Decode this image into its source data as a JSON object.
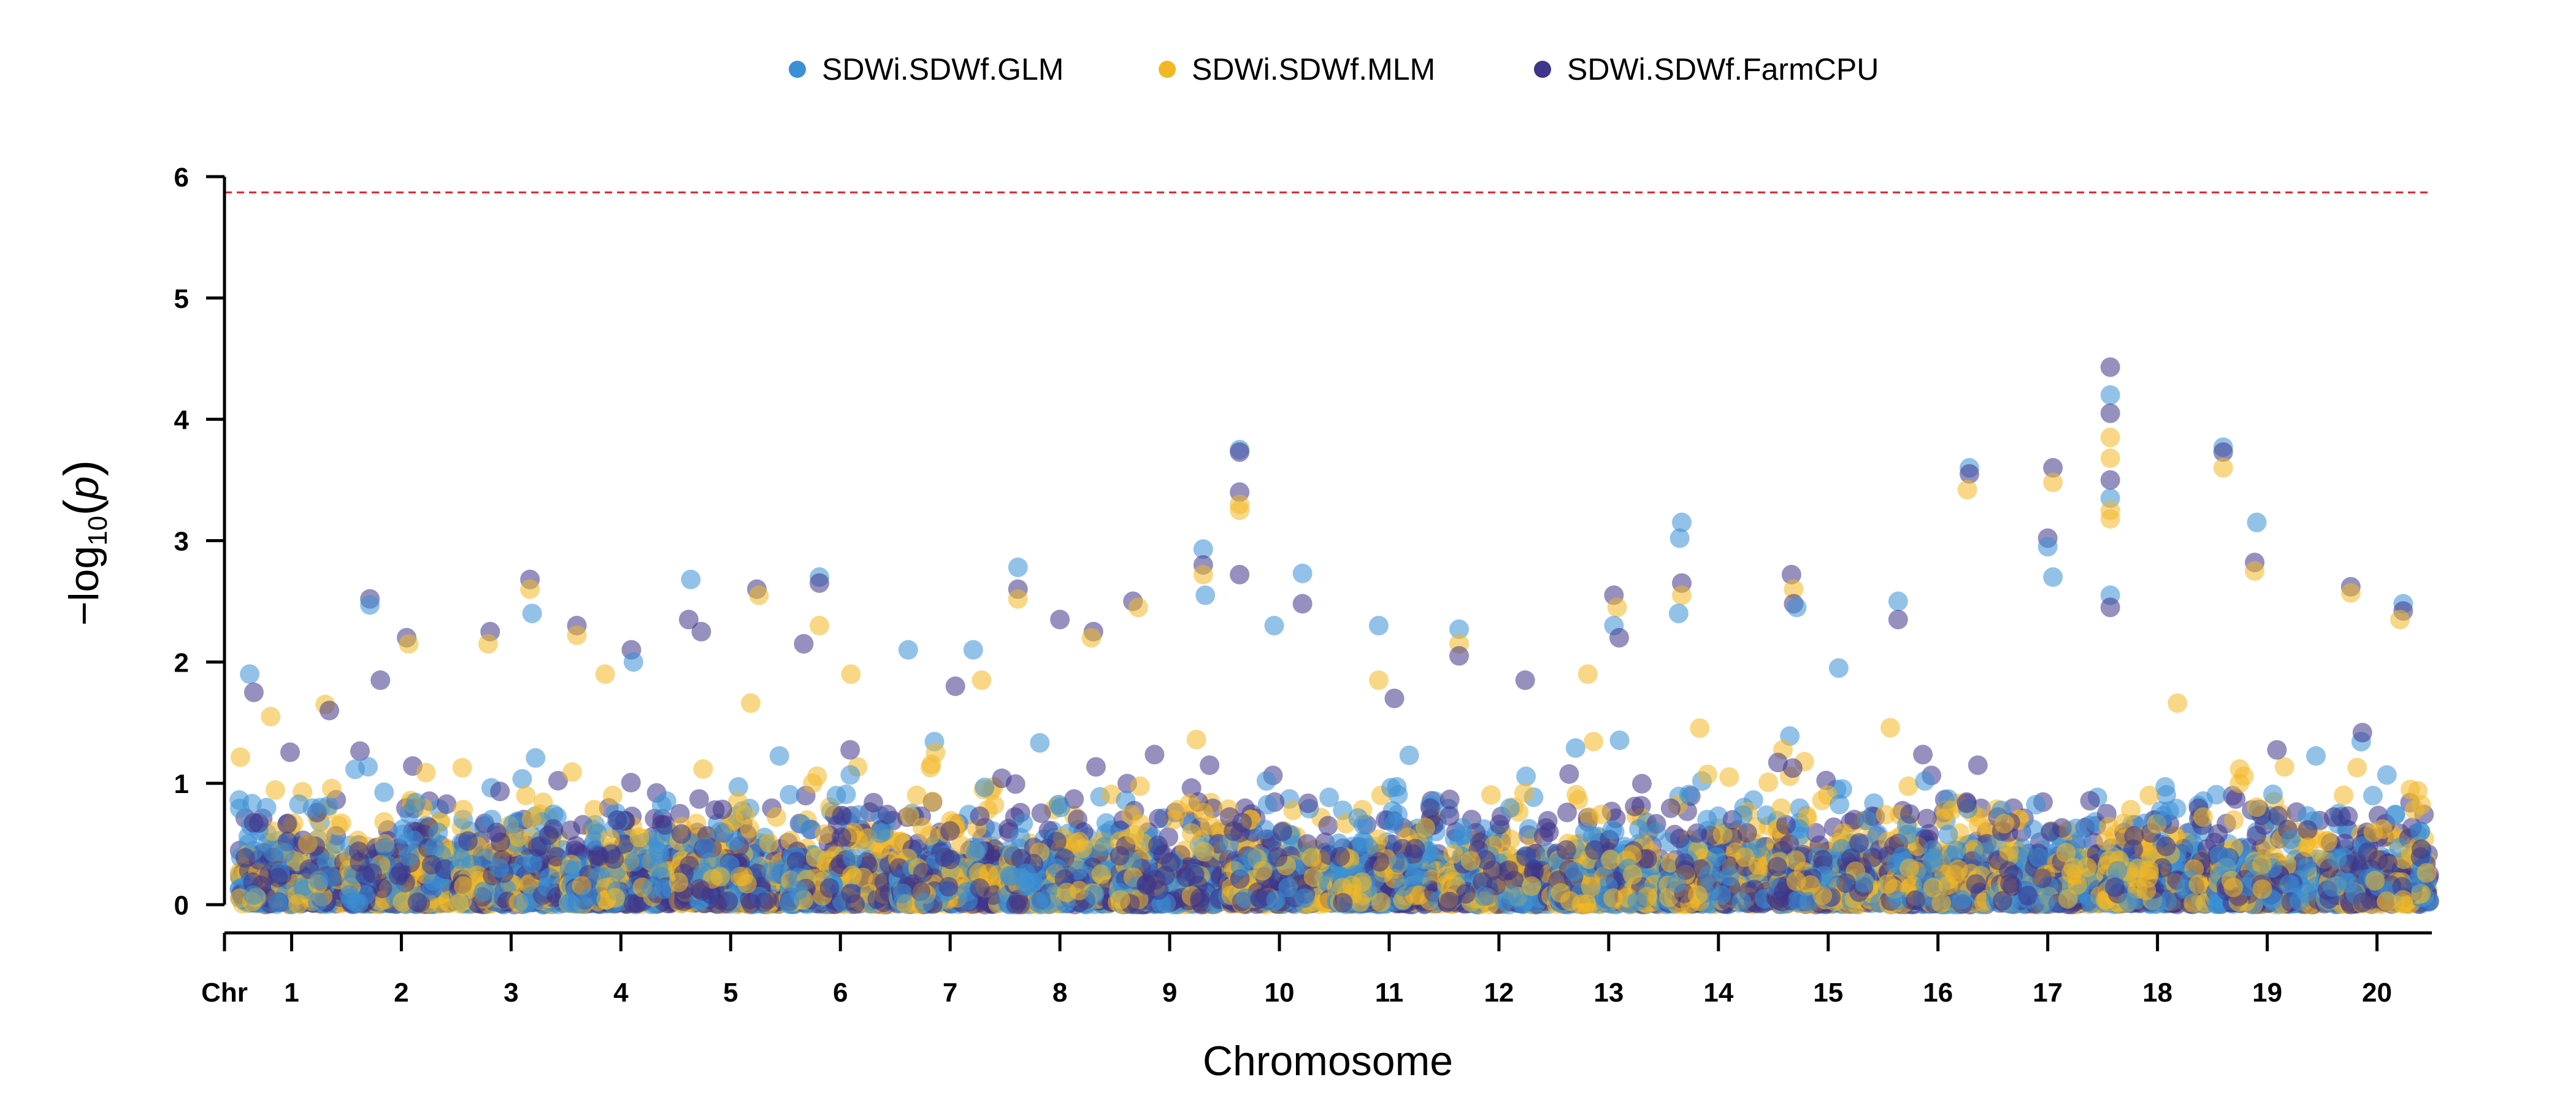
{
  "chart_data": {
    "type": "scatter",
    "subtype": "manhattan",
    "xlabel": "Chromosome",
    "ylabel": "−log10(p)",
    "ylabel_main": "−log",
    "ylabel_sub": "10",
    "ylabel_paren_open": "(",
    "ylabel_var": "p",
    "ylabel_paren_close": ")",
    "x_prefix_label": "Chr",
    "ylim": [
      0,
      6
    ],
    "yticks": [
      "0",
      "1",
      "2",
      "3",
      "4",
      "5",
      "6"
    ],
    "threshold": {
      "value": 5.87,
      "color": "#e0242a",
      "style": "dashed"
    },
    "legend_position": "top-center",
    "series": [
      {
        "name": "SDWi.SDWf.GLM",
        "color": "#3b8fd6"
      },
      {
        "name": "SDWi.SDWf.MLM",
        "color": "#f2b824"
      },
      {
        "name": "SDWi.SDWf.FarmCPU",
        "color": "#3f3589"
      }
    ],
    "chromosomes": [
      {
        "label": "1",
        "peak": 1.9,
        "dense": 1.3,
        "top": [
          [
            0.1,
            1.9,
            0
          ],
          [
            0.14,
            1.75,
            2
          ],
          [
            0.3,
            1.55,
            1
          ],
          [
            0.82,
            1.65,
            1
          ],
          [
            0.86,
            1.6,
            2
          ]
        ]
      },
      {
        "label": "2",
        "peak": 2.5,
        "dense": 1.3,
        "top": [
          [
            0.2,
            2.52,
            2
          ],
          [
            0.2,
            2.47,
            0
          ],
          [
            0.55,
            2.2,
            2
          ],
          [
            0.57,
            2.15,
            1
          ],
          [
            0.3,
            1.85,
            2
          ]
        ]
      },
      {
        "label": "3",
        "peak": 2.68,
        "dense": 1.45,
        "top": [
          [
            0.68,
            2.68,
            2
          ],
          [
            0.68,
            2.6,
            1
          ],
          [
            0.3,
            2.25,
            2
          ],
          [
            0.28,
            2.15,
            1
          ],
          [
            0.7,
            2.4,
            0
          ]
        ]
      },
      {
        "label": "4",
        "peak": 2.3,
        "dense": 1.5,
        "top": [
          [
            0.08,
            2.3,
            2
          ],
          [
            0.08,
            2.22,
            1
          ],
          [
            0.6,
            2.1,
            2
          ],
          [
            0.62,
            2.0,
            0
          ],
          [
            0.35,
            1.9,
            1
          ]
        ]
      },
      {
        "label": "5",
        "peak": 2.68,
        "dense": 2.0,
        "top": [
          [
            0.12,
            2.68,
            0
          ],
          [
            0.1,
            2.35,
            2
          ],
          [
            0.22,
            2.25,
            2
          ],
          [
            0.75,
            2.6,
            2
          ],
          [
            0.77,
            2.55,
            1
          ]
        ]
      },
      {
        "label": "6",
        "peak": 2.7,
        "dense": 1.5,
        "top": [
          [
            0.3,
            2.7,
            0
          ],
          [
            0.3,
            2.65,
            2
          ],
          [
            0.3,
            2.3,
            1
          ],
          [
            0.15,
            2.15,
            2
          ],
          [
            0.6,
            1.9,
            1
          ]
        ]
      },
      {
        "label": "7",
        "peak": 2.1,
        "dense": 1.4,
        "top": [
          [
            0.1,
            2.1,
            0
          ],
          [
            0.72,
            2.1,
            0
          ],
          [
            0.8,
            1.85,
            1
          ],
          [
            0.55,
            1.8,
            2
          ]
        ]
      },
      {
        "label": "8",
        "peak": 2.78,
        "dense": 1.4,
        "top": [
          [
            0.1,
            2.78,
            0
          ],
          [
            0.1,
            2.6,
            2
          ],
          [
            0.1,
            2.52,
            1
          ],
          [
            0.5,
            2.35,
            2
          ],
          [
            0.82,
            2.25,
            2
          ],
          [
            0.8,
            2.2,
            1
          ]
        ]
      },
      {
        "label": "9",
        "peak": 2.93,
        "dense": 1.5,
        "top": [
          [
            0.15,
            2.5,
            2
          ],
          [
            0.2,
            2.45,
            1
          ],
          [
            0.82,
            2.93,
            0
          ],
          [
            0.82,
            2.8,
            2
          ],
          [
            0.82,
            2.72,
            1
          ],
          [
            0.84,
            2.55,
            0
          ]
        ]
      },
      {
        "label": "10",
        "peak": 3.75,
        "dense": 1.5,
        "top": [
          [
            0.12,
            3.75,
            0
          ],
          [
            0.12,
            3.73,
            2
          ],
          [
            0.12,
            3.4,
            2
          ],
          [
            0.12,
            3.3,
            1
          ],
          [
            0.12,
            3.25,
            1
          ],
          [
            0.12,
            2.72,
            2
          ],
          [
            0.72,
            2.73,
            0
          ],
          [
            0.72,
            2.48,
            2
          ],
          [
            0.45,
            2.3,
            0
          ]
        ]
      },
      {
        "label": "11",
        "peak": 2.3,
        "dense": 1.5,
        "top": [
          [
            0.4,
            2.3,
            0
          ],
          [
            0.4,
            1.85,
            1
          ],
          [
            0.55,
            1.7,
            2
          ]
        ]
      },
      {
        "label": "12",
        "peak": 2.27,
        "dense": 1.5,
        "top": [
          [
            0.12,
            2.27,
            0
          ],
          [
            0.12,
            2.15,
            1
          ],
          [
            0.12,
            2.05,
            2
          ],
          [
            0.75,
            1.85,
            2
          ]
        ]
      },
      {
        "label": "13",
        "peak": 2.55,
        "dense": 1.8,
        "top": [
          [
            0.55,
            2.55,
            2
          ],
          [
            0.58,
            2.45,
            1
          ],
          [
            0.55,
            2.3,
            0
          ],
          [
            0.6,
            2.2,
            2
          ],
          [
            0.3,
            1.9,
            1
          ]
        ]
      },
      {
        "label": "14",
        "peak": 3.15,
        "dense": 1.5,
        "top": [
          [
            0.15,
            3.15,
            0
          ],
          [
            0.13,
            3.02,
            0
          ],
          [
            0.15,
            2.65,
            2
          ],
          [
            0.15,
            2.55,
            1
          ],
          [
            0.12,
            2.4,
            0
          ]
        ]
      },
      {
        "label": "15",
        "peak": 2.72,
        "dense": 1.6,
        "top": [
          [
            0.15,
            2.72,
            2
          ],
          [
            0.17,
            2.6,
            1
          ],
          [
            0.17,
            2.48,
            2
          ],
          [
            0.2,
            2.45,
            0
          ],
          [
            0.6,
            1.95,
            0
          ]
        ]
      },
      {
        "label": "16",
        "peak": 3.6,
        "dense": 1.6,
        "top": [
          [
            0.8,
            3.6,
            0
          ],
          [
            0.8,
            3.55,
            2
          ],
          [
            0.78,
            3.42,
            1
          ],
          [
            0.12,
            2.5,
            0
          ],
          [
            0.12,
            2.35,
            2
          ]
        ]
      },
      {
        "label": "17",
        "peak": 3.6,
        "dense": 1.5,
        "top": [
          [
            0.55,
            3.6,
            2
          ],
          [
            0.55,
            3.48,
            1
          ],
          [
            0.5,
            3.02,
            2
          ],
          [
            0.5,
            2.95,
            0
          ],
          [
            0.55,
            2.7,
            0
          ]
        ]
      },
      {
        "label": "18",
        "peak": 4.43,
        "dense": 2.0,
        "top": [
          [
            0.05,
            4.43,
            2
          ],
          [
            0.05,
            4.2,
            0
          ],
          [
            0.05,
            4.05,
            2
          ],
          [
            0.05,
            3.85,
            1
          ],
          [
            0.05,
            3.68,
            1
          ],
          [
            0.05,
            3.5,
            2
          ],
          [
            0.05,
            3.35,
            0
          ],
          [
            0.05,
            3.25,
            1
          ],
          [
            0.05,
            3.18,
            1
          ],
          [
            0.05,
            2.55,
            0
          ],
          [
            0.05,
            2.45,
            2
          ]
        ]
      },
      {
        "label": "19",
        "peak": 3.77,
        "dense": 1.4,
        "top": [
          [
            0.08,
            3.77,
            0
          ],
          [
            0.08,
            3.73,
            2
          ],
          [
            0.08,
            3.6,
            1
          ],
          [
            0.4,
            3.15,
            0
          ],
          [
            0.38,
            2.82,
            2
          ],
          [
            0.38,
            2.75,
            1
          ]
        ]
      },
      {
        "label": "20",
        "peak": 2.62,
        "dense": 1.7,
        "top": [
          [
            0.25,
            2.62,
            2
          ],
          [
            0.25,
            2.57,
            1
          ],
          [
            0.75,
            2.48,
            0
          ],
          [
            0.75,
            2.42,
            2
          ],
          [
            0.72,
            2.35,
            1
          ]
        ]
      }
    ]
  }
}
